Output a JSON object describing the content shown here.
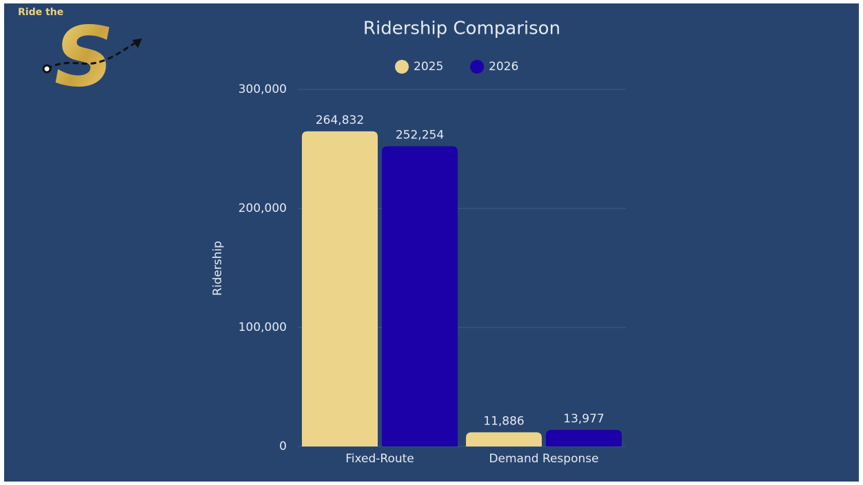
{
  "logo": {
    "text": "Ride the",
    "letter": "S"
  },
  "chart_data": {
    "type": "bar",
    "title": "Ridership Comparison",
    "y_label": "Ridership",
    "categories": [
      "Fixed-Route",
      "Demand Response"
    ],
    "series": [
      {
        "name": "2025",
        "color": "#ecd48b",
        "values": [
          264832,
          11886
        ],
        "value_labels": [
          "264,832",
          "11,886"
        ]
      },
      {
        "name": "2026",
        "color": "#1c00a8",
        "values": [
          252254,
          13977
        ],
        "value_labels": [
          "252,254",
          "13,977"
        ]
      }
    ],
    "ylim": [
      0,
      300000
    ],
    "yticks": [
      0,
      {
        "value": 100000,
        "label": "100,000"
      },
      {
        "value": 200000,
        "label": "200,000"
      },
      {
        "value": 300000,
        "label": "300,000"
      }
    ],
    "grid": true,
    "legend": "top"
  }
}
